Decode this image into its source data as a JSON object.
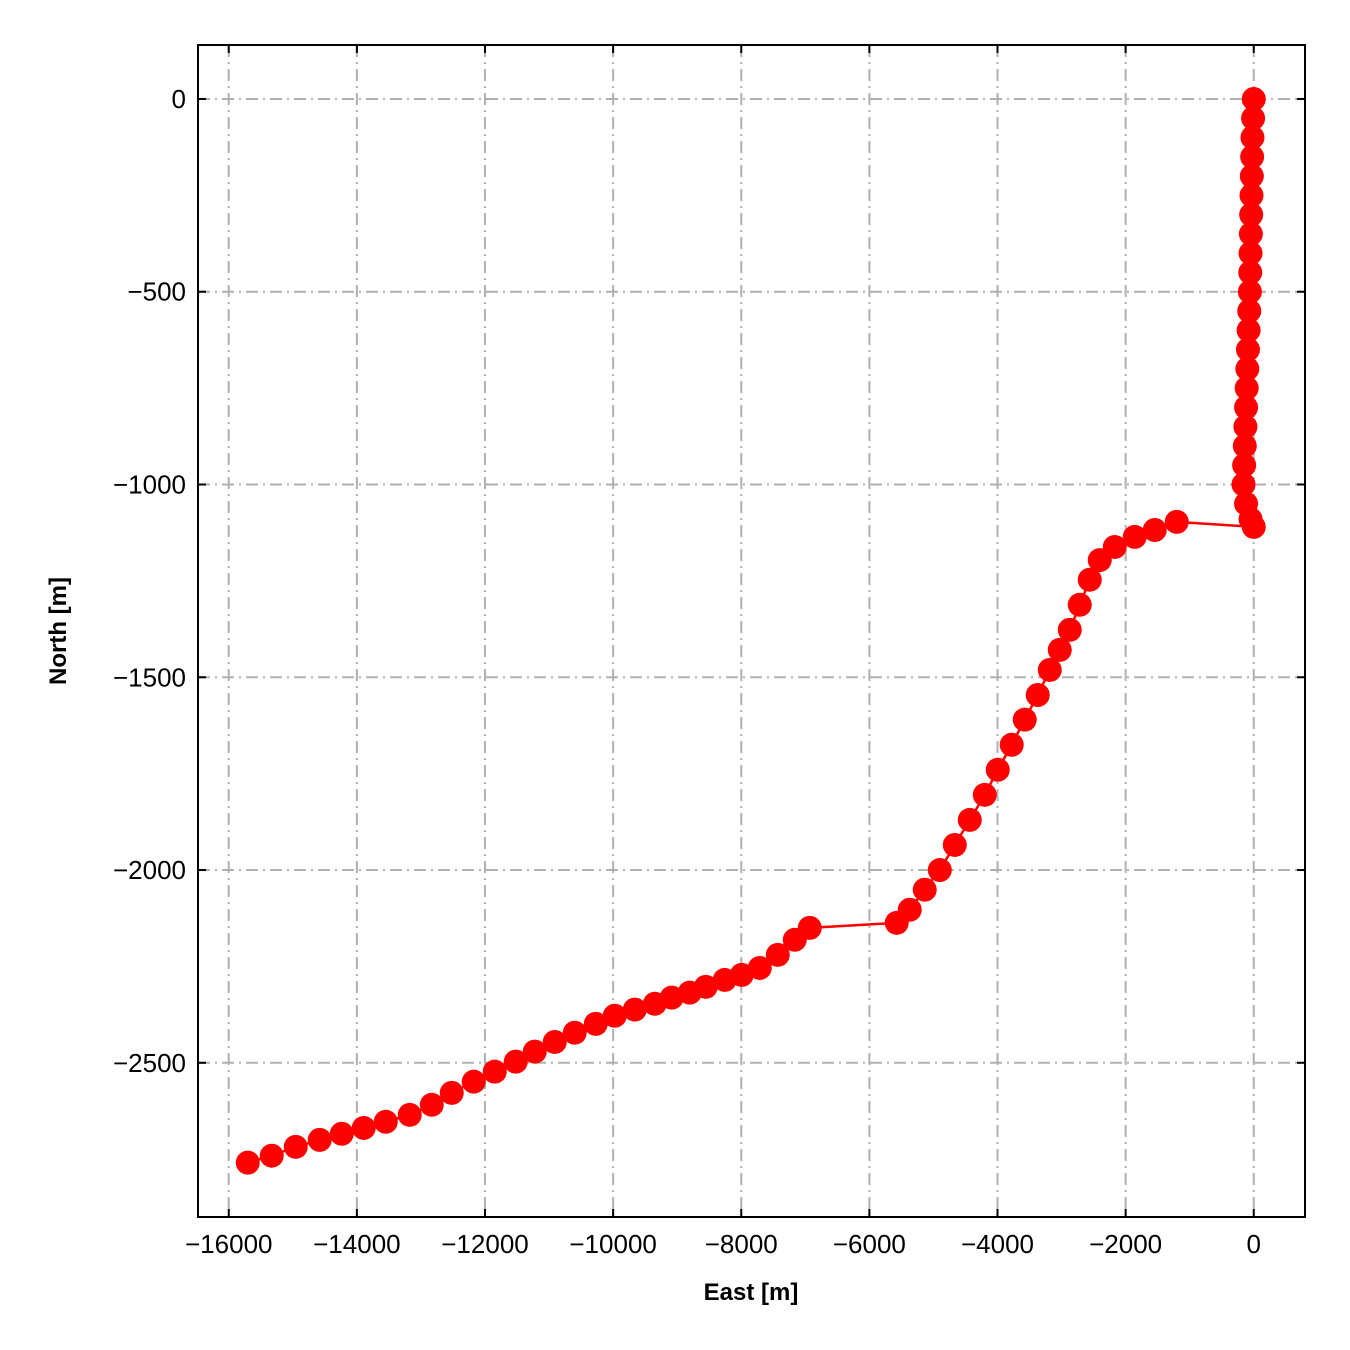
{
  "chart_data": {
    "type": "line",
    "xlabel": "East [m]",
    "ylabel": "North [m]",
    "xlim": [
      -16480,
      800
    ],
    "ylim": [
      -2900,
      140
    ],
    "xticks": [
      {
        "value": -16000,
        "label": "−16000"
      },
      {
        "value": -14000,
        "label": "−14000"
      },
      {
        "value": -12000,
        "label": "−12000"
      },
      {
        "value": -10000,
        "label": "−10000"
      },
      {
        "value": -8000,
        "label": "−8000"
      },
      {
        "value": -6000,
        "label": "−6000"
      },
      {
        "value": -4000,
        "label": "−4000"
      },
      {
        "value": -2000,
        "label": "−2000"
      },
      0
    ],
    "yticks": [
      0,
      {
        "value": -500,
        "label": "−500"
      },
      {
        "value": -1000,
        "label": "−1000"
      },
      {
        "value": -1500,
        "label": "−1500"
      },
      {
        "value": -2000,
        "label": "−2000"
      },
      {
        "value": -2500,
        "label": "−2500"
      }
    ],
    "grid": true,
    "series": [
      {
        "color": "#ff0000",
        "x": [
          0,
          -10,
          -20,
          -25,
          -30,
          -35,
          -40,
          -45,
          -50,
          -55,
          -60,
          -70,
          -80,
          -90,
          -100,
          -110,
          -120,
          -130,
          -140,
          -150,
          -160,
          -120,
          -50,
          0,
          -1202,
          -1545,
          -1858,
          -2170,
          -2404,
          -2560,
          -2716,
          -2872,
          -3028,
          -3184,
          -3372,
          -3575,
          -3778,
          -3996,
          -4199,
          -4433,
          -4667,
          -4901,
          -5136,
          -5370,
          -5573,
          -6931,
          -7165,
          -7430,
          -7711,
          -7992,
          -8258,
          -8554,
          -8804,
          -9085,
          -9350,
          -9662,
          -9975,
          -10271,
          -10599,
          -10911,
          -11223,
          -11520,
          -11848,
          -12176,
          -12519,
          -12831,
          -13175,
          -13549,
          -13893,
          -14236,
          -14580,
          -14954,
          -15329,
          -15703
        ],
        "values": [
          0,
          -50,
          -100,
          -150,
          -200,
          -250,
          -300,
          -350,
          -400,
          -450,
          -500,
          -550,
          -600,
          -650,
          -700,
          -750,
          -800,
          -850,
          -900,
          -950,
          -1000,
          -1050,
          -1090,
          -1110,
          -1097,
          -1118,
          -1136,
          -1162,
          -1196,
          -1247,
          -1312,
          -1377,
          -1429,
          -1481,
          -1546,
          -1610,
          -1675,
          -1740,
          -1805,
          -1870,
          -1935,
          -2000,
          -2051,
          -2103,
          -2137,
          -2150,
          -2181,
          -2220,
          -2254,
          -2272,
          -2285,
          -2303,
          -2318,
          -2331,
          -2347,
          -2362,
          -2378,
          -2399,
          -2422,
          -2446,
          -2471,
          -2497,
          -2523,
          -2549,
          -2578,
          -2609,
          -2635,
          -2653,
          -2669,
          -2684,
          -2700,
          -2718,
          -2741,
          -2759
        ]
      }
    ]
  }
}
